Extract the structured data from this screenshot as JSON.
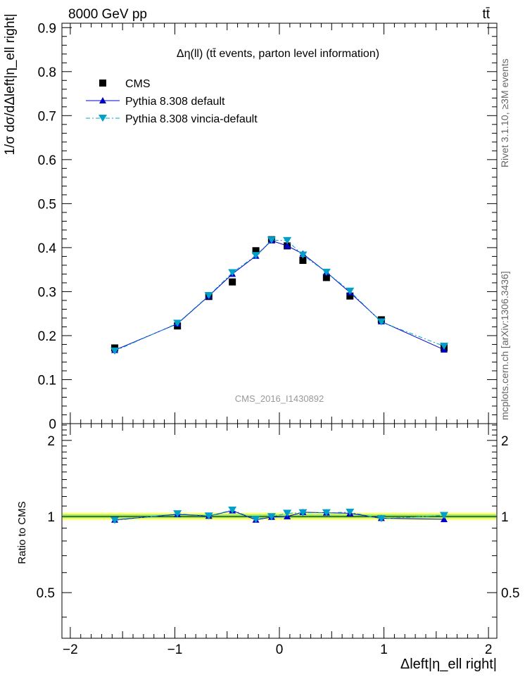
{
  "header": {
    "energy_label": "8000 GeV pp",
    "process_label": "tt̄"
  },
  "side_labels": {
    "rivet": "Rivet 3.1.10, ≥3M events",
    "mcplots": "mcplots.cern.ch [arXiv:1306.3436]"
  },
  "analysis_id": "CMS_2016_I1430892",
  "chart_data": [
    {
      "type": "scatter",
      "title": "Δη(ll) (tt̄ events, parton level information)",
      "ylabel": "1/σ dσ/dΔleft|η_ell right|",
      "xlim": [
        -2.08,
        2.08
      ],
      "ylim": [
        0,
        0.91
      ],
      "y_ticks": [
        "0",
        "0.1",
        "0.2",
        "0.3",
        "0.4",
        "0.5",
        "0.6",
        "0.7",
        "0.8",
        "0.9"
      ],
      "legend_position": "top-left",
      "x": [
        -1.575,
        -0.975,
        -0.675,
        -0.45,
        -0.225,
        -0.075,
        0.075,
        0.225,
        0.45,
        0.675,
        0.975,
        1.575
      ],
      "series": [
        {
          "name": "CMS",
          "color": "#000000",
          "marker": "square",
          "values": [
            0.172,
            0.222,
            0.289,
            0.322,
            0.393,
            0.418,
            0.404,
            0.371,
            0.332,
            0.29,
            0.236,
            0.172
          ]
        },
        {
          "name": "Pythia 8.308 default",
          "color": "#0000cc",
          "marker": "triangle-up",
          "values": [
            0.167,
            0.227,
            0.29,
            0.34,
            0.381,
            0.416,
            0.404,
            0.386,
            0.344,
            0.298,
            0.232,
            0.168
          ]
        },
        {
          "name": "Pythia 8.308 vincia-default",
          "color": "#00a0c8",
          "marker": "triangle-down",
          "values": [
            0.165,
            0.228,
            0.291,
            0.343,
            0.382,
            0.417,
            0.416,
            0.383,
            0.344,
            0.301,
            0.231,
            0.176
          ]
        }
      ]
    },
    {
      "type": "line",
      "ylabel": "Ratio to CMS",
      "xlabel": "Δleft|η_ell right|",
      "xlim": [
        -2.08,
        2.08
      ],
      "ylim": [
        0.33,
        2.33
      ],
      "y_ticks": [
        "0.5",
        "1",
        "2"
      ],
      "x_ticks": [
        "−2",
        "−1",
        "0",
        "1",
        "2"
      ],
      "uncertainty_band": {
        "low": 0.97,
        "high": 1.035,
        "inner_low": 0.985,
        "inner_high": 1.02
      },
      "x": [
        -1.575,
        -0.975,
        -0.675,
        -0.45,
        -0.225,
        -0.075,
        0.075,
        0.225,
        0.45,
        0.675,
        0.975,
        1.575
      ],
      "series": [
        {
          "name": "Pythia 8.308 default",
          "color": "#0000cc",
          "values": [
            0.97,
            1.02,
            1.005,
            1.055,
            0.97,
            0.995,
            1.0,
            1.04,
            1.035,
            1.03,
            0.985,
            0.975
          ]
        },
        {
          "name": "Pythia 8.308 vincia-default",
          "color": "#00a0c8",
          "values": [
            0.965,
            1.025,
            1.005,
            1.06,
            0.975,
            0.998,
            1.03,
            1.035,
            1.035,
            1.04,
            0.98,
            1.01
          ]
        }
      ]
    }
  ]
}
